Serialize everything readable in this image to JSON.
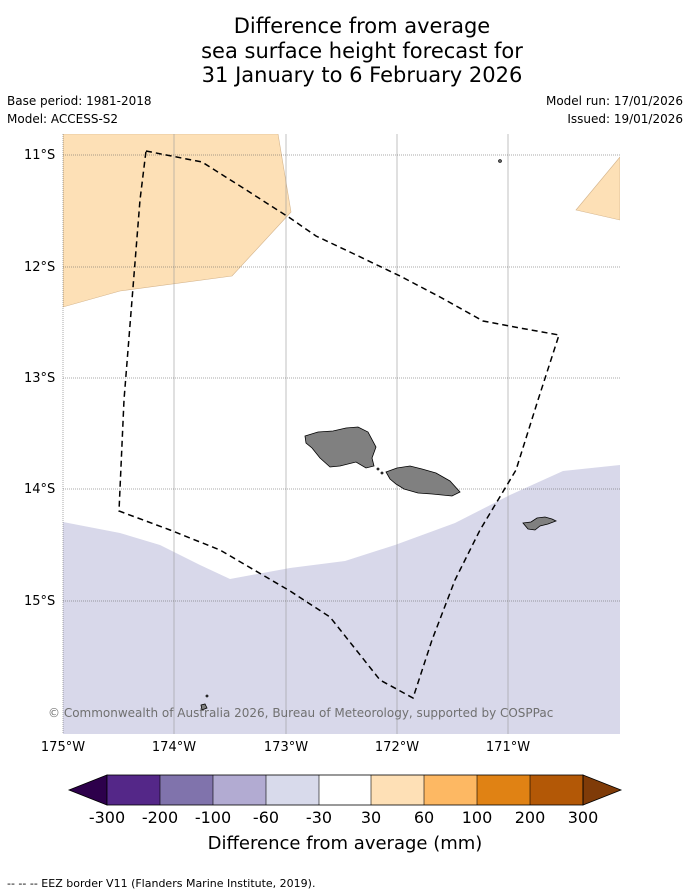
{
  "title": {
    "line1": "Difference from average",
    "line2": "sea surface height forecast for",
    "line3": "31 January to 6 February 2026"
  },
  "meta": {
    "base_period": "Base period: 1981-2018",
    "model": "Model: ACCESS-S2",
    "model_run": "Model run: 17/01/2026",
    "issued": "Issued: 19/01/2026"
  },
  "map": {
    "lon_labels": [
      "175°W",
      "174°W",
      "173°W",
      "172°W",
      "171°W"
    ],
    "lat_labels": [
      "11°S",
      "12°S",
      "13°S",
      "14°S",
      "15°S"
    ],
    "credit": "© Commonwealth of Australia 2026, Bureau of Meteorology, supported by COSPPac",
    "colors": {
      "positive_30_60": "#fde0b6",
      "negative_60_30": "#d8d8ea",
      "land": "#808080"
    }
  },
  "colorbar": {
    "ticks": [
      "-300",
      "-200",
      "-100",
      "-60",
      "-30",
      "30",
      "60",
      "100",
      "200",
      "300"
    ],
    "colors": [
      "#2d004b",
      "#542788",
      "#8073ac",
      "#b2abd2",
      "#d8daeb",
      "#ffffff",
      "#fee0b6",
      "#fdb863",
      "#e08214",
      "#b35806",
      "#7f3b08"
    ],
    "label": "Difference from average (mm)"
  },
  "footer": "--  --  -- EEZ border V11 (Flanders Marine Institute, 2019)."
}
